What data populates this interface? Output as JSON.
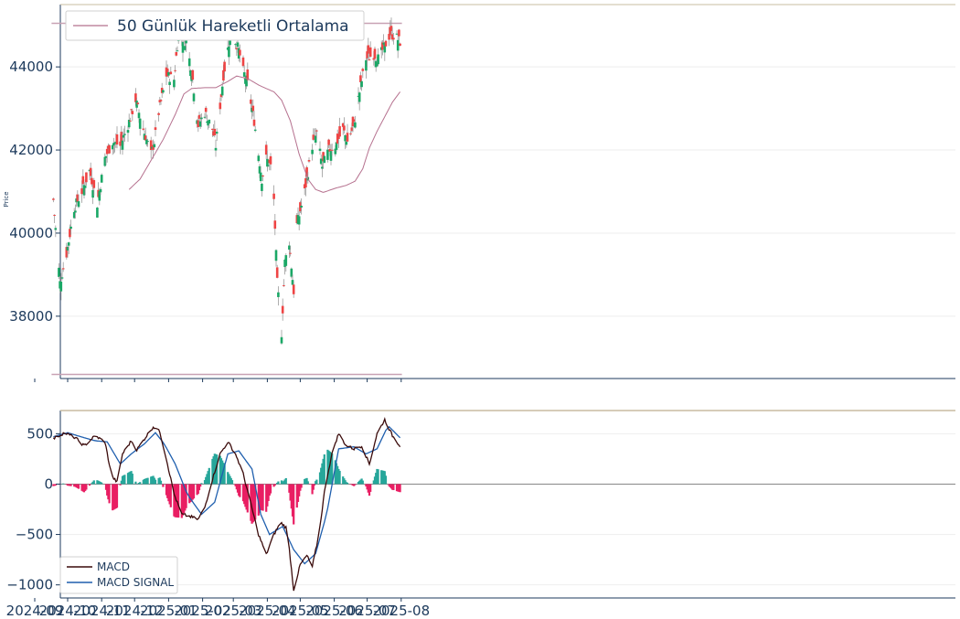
{
  "chart_data": [
    {
      "type": "candlestick",
      "ylabel": "Price",
      "ylim": [
        36500,
        45500
      ],
      "yticks": [
        38000,
        40000,
        42000,
        44000
      ],
      "legend": {
        "label": "50 Günlük Hareketli Ortalama",
        "position": "top-left"
      },
      "colors": {
        "up": "#1aa866",
        "down": "#ef4444",
        "wick": "#9a9a9a",
        "ma": "#b5708e",
        "hline": "#c8a2b4"
      },
      "hlines": [
        45050,
        36600
      ],
      "x_start": "2024-09-18",
      "x_end": "2025-07-31",
      "close_anchors": [
        [
          "2024-09-18",
          40800
        ],
        [
          "2024-09-20",
          40100
        ],
        [
          "2024-09-24",
          38800
        ],
        [
          "2024-09-30",
          39500
        ],
        [
          "2024-10-07",
          40600
        ],
        [
          "2024-10-14",
          41000
        ],
        [
          "2024-10-21",
          41500
        ],
        [
          "2024-10-28",
          40700
        ],
        [
          "2024-11-04",
          41800
        ],
        [
          "2024-11-11",
          42200
        ],
        [
          "2024-11-18",
          42100
        ],
        [
          "2024-11-25",
          42600
        ],
        [
          "2024-12-02",
          43200
        ],
        [
          "2024-12-09",
          42500
        ],
        [
          "2024-12-16",
          41900
        ],
        [
          "2024-12-19",
          42200
        ],
        [
          "2024-12-23",
          42900
        ],
        [
          "2024-12-30",
          43800
        ],
        [
          "2025-01-06",
          43700
        ],
        [
          "2025-01-10",
          44800
        ],
        [
          "2025-01-17",
          44600
        ],
        [
          "2025-01-22",
          43900
        ],
        [
          "2025-01-28",
          42600
        ],
        [
          "2025-02-03",
          42900
        ],
        [
          "2025-02-10",
          42500
        ],
        [
          "2025-02-13",
          42100
        ],
        [
          "2025-02-20",
          43800
        ],
        [
          "2025-02-27",
          44900
        ],
        [
          "2025-03-06",
          44400
        ],
        [
          "2025-03-10",
          43900
        ],
        [
          "2025-03-14",
          43600
        ],
        [
          "2025-03-20",
          42700
        ],
        [
          "2025-03-27",
          41300
        ],
        [
          "2025-03-31",
          41800
        ],
        [
          "2025-04-04",
          41600
        ],
        [
          "2025-04-07",
          40800
        ],
        [
          "2025-04-10",
          38800
        ],
        [
          "2025-04-14",
          37600
        ],
        [
          "2025-04-17",
          39300
        ],
        [
          "2025-04-21",
          39800
        ],
        [
          "2025-04-25",
          38600
        ],
        [
          "2025-04-28",
          40200
        ],
        [
          "2025-05-05",
          41000
        ],
        [
          "2025-05-12",
          42100
        ],
        [
          "2025-05-16",
          42400
        ],
        [
          "2025-05-21",
          41600
        ],
        [
          "2025-05-27",
          42000
        ],
        [
          "2025-06-02",
          42100
        ],
        [
          "2025-06-09",
          42500
        ],
        [
          "2025-06-13",
          42200
        ],
        [
          "2025-06-19",
          42600
        ],
        [
          "2025-06-24",
          43400
        ],
        [
          "2025-06-30",
          44200
        ],
        [
          "2025-07-07",
          44300
        ],
        [
          "2025-07-11",
          44200
        ],
        [
          "2025-07-17",
          44500
        ],
        [
          "2025-07-22",
          44800
        ],
        [
          "2025-07-28",
          44700
        ],
        [
          "2025-07-31",
          44600
        ]
      ],
      "ma_anchors": [
        [
          "2024-11-26",
          41050
        ],
        [
          "2024-12-06",
          41300
        ],
        [
          "2024-12-16",
          41750
        ],
        [
          "2024-12-27",
          42250
        ],
        [
          "2025-01-07",
          42850
        ],
        [
          "2025-01-15",
          43350
        ],
        [
          "2025-01-22",
          43480
        ],
        [
          "2025-02-03",
          43500
        ],
        [
          "2025-02-13",
          43500
        ],
        [
          "2025-02-24",
          43650
        ],
        [
          "2025-03-04",
          43780
        ],
        [
          "2025-03-14",
          43720
        ],
        [
          "2025-03-25",
          43550
        ],
        [
          "2025-04-07",
          43400
        ],
        [
          "2025-04-14",
          43200
        ],
        [
          "2025-04-22",
          42700
        ],
        [
          "2025-04-30",
          41900
        ],
        [
          "2025-05-08",
          41300
        ],
        [
          "2025-05-15",
          41050
        ],
        [
          "2025-05-22",
          40980
        ],
        [
          "2025-06-02",
          41080
        ],
        [
          "2025-06-12",
          41150
        ],
        [
          "2025-06-20",
          41250
        ],
        [
          "2025-06-27",
          41550
        ],
        [
          "2025-07-03",
          42050
        ],
        [
          "2025-07-10",
          42450
        ],
        [
          "2025-07-17",
          42800
        ],
        [
          "2025-07-24",
          43150
        ],
        [
          "2025-07-31",
          43400
        ]
      ]
    },
    {
      "type": "macd",
      "ylim": [
        -1130,
        730
      ],
      "yticks": [
        -1000,
        -500,
        0,
        500
      ],
      "xticks": [
        "2024-09",
        "2024-10",
        "2024-11",
        "2024-12",
        "2025-01",
        "2025-02",
        "2025-03",
        "2025-04",
        "2025-05",
        "2025-06",
        "2025-07",
        "2025-08"
      ],
      "legend": {
        "entries": [
          "MACD",
          "MACD SIGNAL"
        ],
        "position": "bottom-left"
      },
      "colors": {
        "macd": "#3a0a0a",
        "signal": "#1f5fae",
        "hist_pos": "#26a69a",
        "hist_neg": "#e91e63",
        "top_line": "#c8bca0"
      },
      "macd_anchors": [
        [
          "2024-09-18",
          450
        ],
        [
          "2024-09-28",
          510
        ],
        [
          "2024-10-08",
          460
        ],
        [
          "2024-10-16",
          380
        ],
        [
          "2024-10-26",
          480
        ],
        [
          "2024-11-04",
          420
        ],
        [
          "2024-11-10",
          80
        ],
        [
          "2024-11-15",
          20
        ],
        [
          "2024-11-20",
          300
        ],
        [
          "2024-11-28",
          430
        ],
        [
          "2024-12-03",
          340
        ],
        [
          "2024-12-10",
          450
        ],
        [
          "2024-12-18",
          570
        ],
        [
          "2024-12-24",
          520
        ],
        [
          "2024-12-30",
          250
        ],
        [
          "2025-01-06",
          -100
        ],
        [
          "2025-01-13",
          -300
        ],
        [
          "2025-01-20",
          -320
        ],
        [
          "2025-01-28",
          -350
        ],
        [
          "2025-02-03",
          -230
        ],
        [
          "2025-02-10",
          50
        ],
        [
          "2025-02-17",
          300
        ],
        [
          "2025-02-24",
          420
        ],
        [
          "2025-03-03",
          300
        ],
        [
          "2025-03-10",
          100
        ],
        [
          "2025-03-17",
          -200
        ],
        [
          "2025-03-24",
          -500
        ],
        [
          "2025-03-31",
          -700
        ],
        [
          "2025-04-07",
          -500
        ],
        [
          "2025-04-13",
          -380
        ],
        [
          "2025-04-19",
          -440
        ],
        [
          "2025-04-25",
          -1050
        ],
        [
          "2025-05-01",
          -800
        ],
        [
          "2025-05-07",
          -710
        ],
        [
          "2025-05-12",
          -820
        ],
        [
          "2025-05-18",
          -500
        ],
        [
          "2025-05-24",
          0
        ],
        [
          "2025-05-31",
          350
        ],
        [
          "2025-06-05",
          500
        ],
        [
          "2025-06-12",
          380
        ],
        [
          "2025-06-19",
          350
        ],
        [
          "2025-06-26",
          380
        ],
        [
          "2025-07-03",
          200
        ],
        [
          "2025-07-10",
          500
        ],
        [
          "2025-07-17",
          640
        ],
        [
          "2025-07-24",
          480
        ],
        [
          "2025-07-31",
          380
        ]
      ],
      "signal_anchors": [
        [
          "2024-09-18",
          470
        ],
        [
          "2024-10-01",
          510
        ],
        [
          "2024-10-13",
          470
        ],
        [
          "2024-10-26",
          430
        ],
        [
          "2024-11-06",
          420
        ],
        [
          "2024-11-18",
          200
        ],
        [
          "2024-11-28",
          300
        ],
        [
          "2024-12-10",
          400
        ],
        [
          "2024-12-20",
          510
        ],
        [
          "2024-12-28",
          400
        ],
        [
          "2025-01-07",
          200
        ],
        [
          "2025-01-18",
          -100
        ],
        [
          "2025-01-31",
          -300
        ],
        [
          "2025-02-12",
          -180
        ],
        [
          "2025-02-24",
          300
        ],
        [
          "2025-03-06",
          330
        ],
        [
          "2025-03-18",
          150
        ],
        [
          "2025-03-26",
          -300
        ],
        [
          "2025-04-03",
          -500
        ],
        [
          "2025-04-15",
          -420
        ],
        [
          "2025-04-25",
          -650
        ],
        [
          "2025-05-05",
          -790
        ],
        [
          "2025-05-15",
          -690
        ],
        [
          "2025-05-25",
          -300
        ],
        [
          "2025-06-05",
          350
        ],
        [
          "2025-06-19",
          370
        ],
        [
          "2025-06-30",
          300
        ],
        [
          "2025-07-10",
          350
        ],
        [
          "2025-07-20",
          580
        ],
        [
          "2025-07-31",
          460
        ]
      ]
    }
  ]
}
